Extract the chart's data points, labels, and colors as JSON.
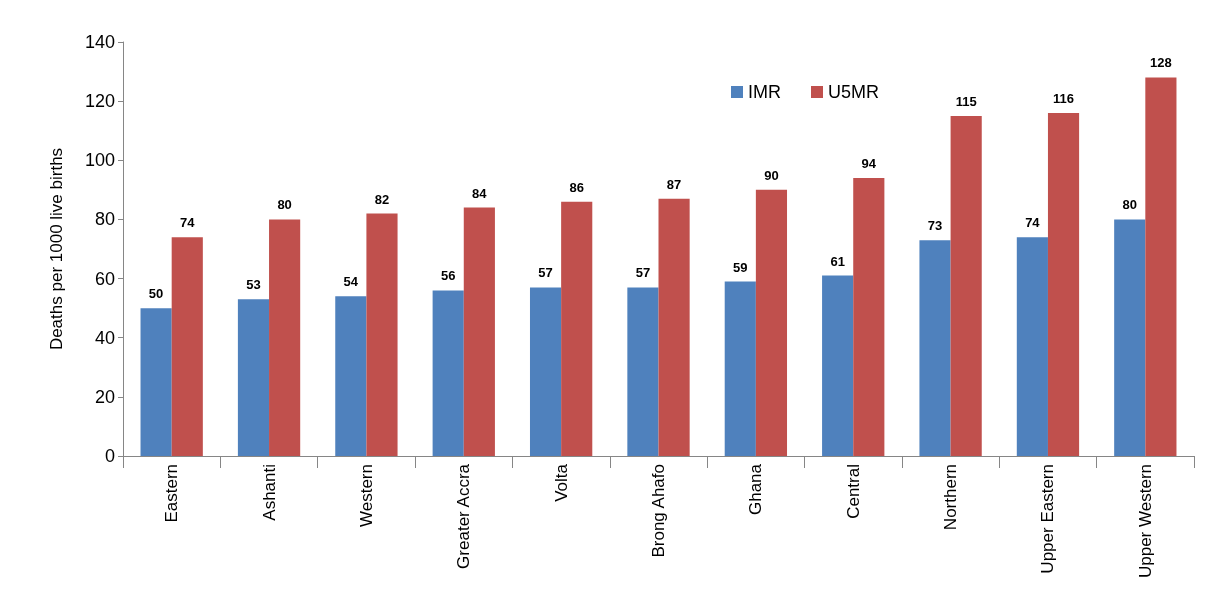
{
  "chart_data": {
    "type": "bar",
    "ylabel": "Deaths per 1000 live births",
    "categories": [
      "Eastern",
      "Ashanti",
      "Western",
      "Greater Accra",
      "Volta",
      "Brong Ahafo",
      "Ghana",
      "Central",
      "Northern",
      "Upper Eastern",
      "Upper Western"
    ],
    "series": [
      {
        "name": "IMR",
        "color": "#4f81bd",
        "values": [
          50,
          53,
          54,
          56,
          57,
          57,
          59,
          61,
          73,
          74,
          80
        ]
      },
      {
        "name": "U5MR",
        "color": "#c0504d",
        "values": [
          74,
          80,
          82,
          84,
          86,
          87,
          90,
          94,
          115,
          116,
          128
        ]
      }
    ],
    "ylim": [
      0,
      140
    ],
    "yticks": [
      0,
      20,
      40,
      60,
      80,
      100,
      120,
      140
    ],
    "grid": false,
    "legend": "top right",
    "data_labels": true
  }
}
